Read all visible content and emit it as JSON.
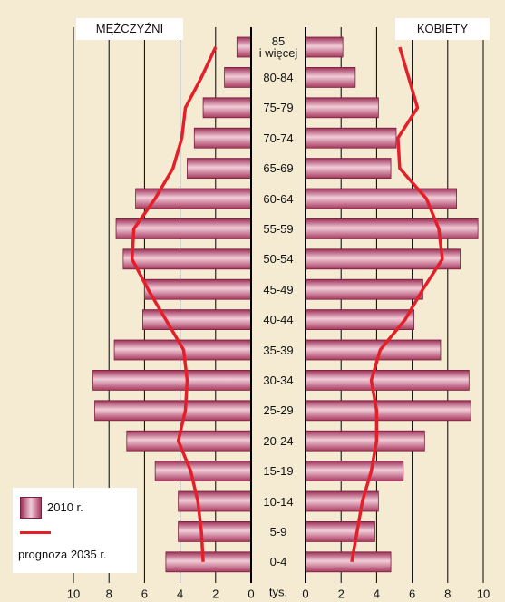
{
  "chart_data": {
    "type": "population-pyramid",
    "left_label": "MĘŻCZYŹNI",
    "right_label": "KOBIETY",
    "x_unit": "tys.",
    "categories": [
      "85\ni więcej",
      "80-84",
      "75-79",
      "70-74",
      "65-69",
      "60-64",
      "55-59",
      "50-54",
      "45-49",
      "40-44",
      "35-39",
      "30-34",
      "25-29",
      "20-24",
      "15-19",
      "10-14",
      "5-9",
      "0-4"
    ],
    "series": [
      {
        "name": "2010 r.",
        "color": "#b5476e",
        "men": [
          0.8,
          1.5,
          2.7,
          3.2,
          3.6,
          6.5,
          7.6,
          7.2,
          6.0,
          6.1,
          7.7,
          8.9,
          8.8,
          7.0,
          5.4,
          4.1,
          4.1,
          4.8
        ],
        "women": [
          2.1,
          2.8,
          4.1,
          5.1,
          4.8,
          8.5,
          9.7,
          8.7,
          6.6,
          6.1,
          7.6,
          9.2,
          9.3,
          6.7,
          5.5,
          4.1,
          3.9,
          4.8
        ]
      },
      {
        "name": "prognoza 2035 r.",
        "color": "#e3202a",
        "men": [
          2.0,
          2.8,
          3.7,
          3.9,
          4.4,
          5.4,
          6.6,
          6.7,
          5.8,
          4.8,
          3.8,
          3.6,
          3.7,
          4.1,
          3.4,
          3.0,
          2.8,
          2.7
        ],
        "women": [
          5.3,
          5.8,
          6.3,
          5.2,
          5.3,
          6.8,
          7.5,
          7.7,
          6.6,
          5.6,
          4.2,
          3.7,
          4.0,
          4.0,
          3.7,
          3.2,
          2.9,
          2.6
        ]
      }
    ],
    "xlim": [
      0,
      10
    ],
    "xticks": [
      0,
      2,
      4,
      6,
      8,
      10
    ],
    "grid": true
  }
}
